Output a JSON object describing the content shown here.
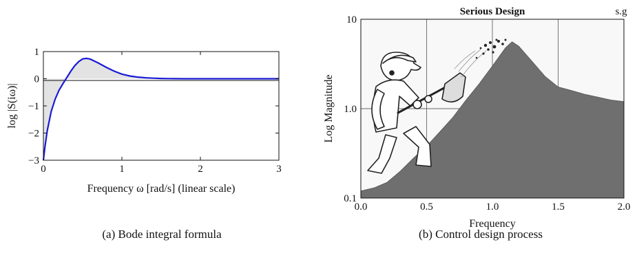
{
  "chart_data": [
    {
      "type": "line",
      "xlabel": "Frequency ω [rad/s] (linear scale)",
      "ylabel": "log |S(iω)|",
      "xlim": [
        0,
        3
      ],
      "ylim": [
        -3,
        1
      ],
      "xticks": [
        "0",
        "1",
        "2",
        "3"
      ],
      "yticks": [
        "1",
        "0",
        "−1",
        "−2",
        "−3"
      ],
      "shaded_area_between_curve_and_zero": true,
      "series": [
        {
          "color": "#1a1ad6",
          "x": [
            0,
            0.02,
            0.05,
            0.1,
            0.15,
            0.2,
            0.25,
            0.3,
            0.35,
            0.4,
            0.45,
            0.5,
            0.55,
            0.6,
            0.7,
            0.8,
            0.9,
            1.0,
            1.1,
            1.2,
            1.3,
            1.4,
            1.5,
            1.6,
            1.8,
            2.0,
            2.5,
            3.0
          ],
          "y": [
            -3,
            -2.5,
            -1.9,
            -1.2,
            -0.75,
            -0.42,
            -0.18,
            0.05,
            0.28,
            0.48,
            0.63,
            0.73,
            0.75,
            0.72,
            0.58,
            0.42,
            0.28,
            0.17,
            0.1,
            0.06,
            0.035,
            0.02,
            0.01,
            0.005,
            0.001,
            0,
            0,
            0
          ]
        }
      ],
      "caption": "(a) Bode integral formula"
    },
    {
      "type": "area",
      "title": "Serious Design",
      "corner_label": "s.g",
      "xlabel": "Frequency",
      "ylabel": "Log Magnitude",
      "xlim": [
        0,
        2
      ],
      "ylim": [
        0.1,
        10
      ],
      "yscale": "log",
      "grid": true,
      "xticks": [
        "0.0",
        "0.5",
        "1.0",
        "1.5",
        "2.0"
      ],
      "yticks": [
        "10",
        "1.0",
        "0.1"
      ],
      "series": [
        {
          "color": "#6f6f6f",
          "x": [
            0.0,
            0.1,
            0.2,
            0.3,
            0.4,
            0.5,
            0.6,
            0.7,
            0.8,
            0.9,
            1.0,
            1.1,
            1.15,
            1.2,
            1.3,
            1.4,
            1.5,
            1.6,
            1.7,
            1.8,
            1.9,
            2.0
          ],
          "y": [
            0.12,
            0.13,
            0.15,
            0.2,
            0.28,
            0.38,
            0.55,
            0.8,
            1.25,
            1.9,
            3.0,
            4.8,
            5.6,
            5.0,
            3.4,
            2.3,
            1.75,
            1.6,
            1.45,
            1.35,
            1.25,
            1.2
          ]
        }
      ],
      "illustration": "cartoon-man-with-shovel",
      "caption": "(b) Control design process"
    }
  ]
}
